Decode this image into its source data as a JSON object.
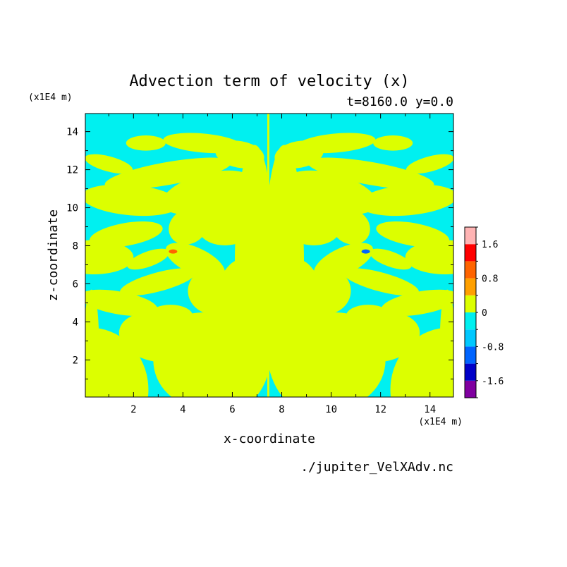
{
  "chart_data": {
    "type": "heatmap",
    "title": "Advection term of velocity (x)",
    "subtitle": "t=8160.0 y=0.0",
    "xlabel": "x-coordinate",
    "ylabel": "z-coordinate",
    "x_unit": "(x1E4 m)",
    "y_unit": "(x1E4 m)",
    "footer": "./jupiter_VelXAdv.nc",
    "xlim": [
      0.05,
      14.95
    ],
    "ylim": [
      0.05,
      14.95
    ],
    "x_ticks": [
      2,
      4,
      6,
      8,
      10,
      12,
      14
    ],
    "y_ticks": [
      2,
      4,
      6,
      8,
      10,
      12,
      14
    ],
    "grid": false,
    "colorbar": {
      "levels": [
        -2.0,
        -1.6,
        -1.2,
        -0.8,
        -0.4,
        0,
        0.4,
        0.8,
        1.2,
        1.6,
        2.0
      ],
      "colors": [
        "#8000a0",
        "#0000c8",
        "#0064ff",
        "#00c8ff",
        "#00f0f0",
        "#dcff00",
        "#ffa000",
        "#ff6400",
        "#ff0000",
        "#ffb4b4"
      ],
      "tick_labels": [
        "-1.6",
        "-0.8",
        "0",
        "0.8",
        "1.6"
      ],
      "tick_values": [
        -1.6,
        -0.8,
        0,
        0.8,
        1.6
      ]
    },
    "field_colors": {
      "positive": "#dcff00",
      "negative": "#00f0f0",
      "strong_positive": "#ff6400",
      "strong_negative": "#0064ff"
    },
    "features": [
      {
        "x": 3.6,
        "z": 7.7,
        "value": 0.8
      },
      {
        "x": 11.4,
        "z": 7.7,
        "value": -0.8
      }
    ]
  }
}
